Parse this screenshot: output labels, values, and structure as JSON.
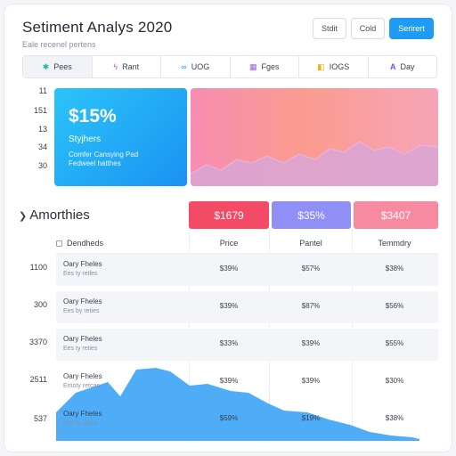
{
  "header": {
    "title": "Setiment Analys 2020",
    "subtitle": "Eale recenel pertens",
    "buttons": [
      {
        "label": "Stdit"
      },
      {
        "label": "Cold"
      },
      {
        "label": "Serirert"
      }
    ]
  },
  "tabs": [
    {
      "label": "Pees",
      "icon": "sparkle-icon",
      "color": "#2bb0a8"
    },
    {
      "label": "Rant",
      "icon": "lightning-icon",
      "color": "#9b5de5"
    },
    {
      "label": "UOG",
      "icon": "link-icon",
      "color": "#1f9bf5"
    },
    {
      "label": "Fges",
      "icon": "grid-icon",
      "color": "#9b5de5"
    },
    {
      "label": "IOGS",
      "icon": "tag-icon",
      "color": "#f4b400"
    },
    {
      "label": "Day",
      "icon": "letter-a-icon",
      "color": "#7d4bd8"
    }
  ],
  "top_axis": [
    "11",
    "151",
    "13",
    "34",
    "30"
  ],
  "hero": {
    "value": "$15%",
    "label": "Styjhers",
    "desc_line1": "Comfer Cansying Pad",
    "desc_line2": "Fedweel hatthes"
  },
  "section": {
    "title": "Amorthies"
  },
  "kpis": [
    {
      "value": "$1679",
      "color": "#f34b66"
    },
    {
      "value": "$35%",
      "color": "#8f8ff6"
    },
    {
      "value": "$3407",
      "color": "#f58aa0"
    }
  ],
  "table": {
    "headers": [
      "Dendheds",
      "Price",
      "Pantel",
      "Temmdry"
    ],
    "rows": [
      {
        "axis": "1100",
        "name": "Oary Fheles",
        "sub": "Ees ty retles",
        "c1": "$39%",
        "c2": "$57%",
        "c3": "$38%"
      },
      {
        "axis": "300",
        "name": "Oary Fheles",
        "sub": "Ees by reties",
        "c1": "$39%",
        "c2": "$87%",
        "c3": "$56%"
      },
      {
        "axis": "3370",
        "name": "Oary Fheles",
        "sub": "Ees ty reties",
        "c1": "$33%",
        "c2": "$39%",
        "c3": "$55%"
      },
      {
        "axis": "2511",
        "name": "Oary Fheles",
        "sub": "Emoty retcas",
        "c1": "$39%",
        "c2": "$39%",
        "c3": "$30%"
      },
      {
        "axis": "537",
        "name": "Oary Fheles",
        "sub": "Ees ty retles",
        "c1": "$59%",
        "c2": "$19%",
        "c3": "$38%"
      }
    ]
  },
  "colors": {
    "accent": "#1f9bf5",
    "hero_gradient_start": "#2bc4f9",
    "wave_fill": "#3fa6f5"
  }
}
